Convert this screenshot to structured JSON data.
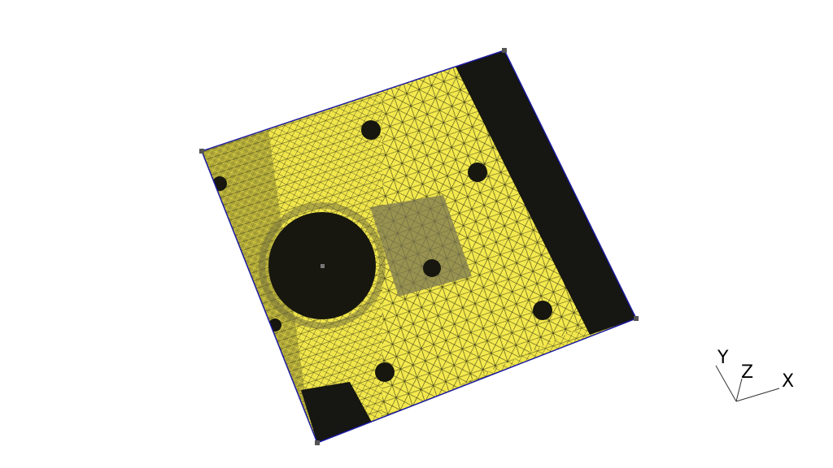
{
  "viewer": {
    "background_color": "#ffffff",
    "mesh_fill_color": "#f2e84a",
    "mesh_line_color": "#111111",
    "boundary_color": "#1a1aa0",
    "vertex_marker_color": "#555555"
  },
  "axes": {
    "x_label": "X",
    "y_label": "Y",
    "z_label": "Z"
  }
}
